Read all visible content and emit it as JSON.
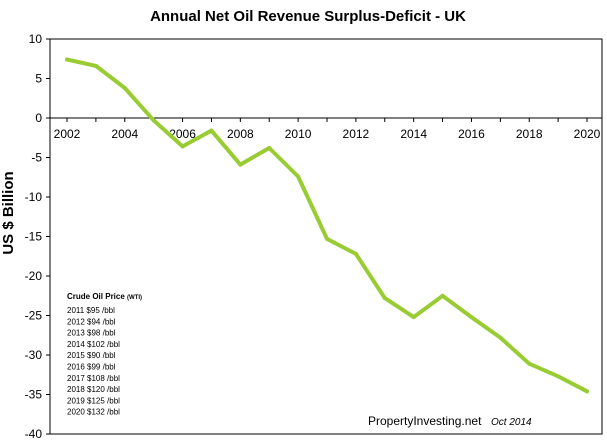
{
  "chart_data": {
    "type": "line",
    "title": "Annual Net Oil Revenue Surplus-Deficit  - UK",
    "ylabel": "US $ Billion",
    "xlabel": "",
    "xlim": [
      2002,
      2020
    ],
    "ylim": [
      -40,
      10
    ],
    "x_ticks": [
      "2002",
      "2004",
      "2006",
      "2008",
      "2010",
      "2012",
      "2014",
      "2016",
      "2018",
      "2020"
    ],
    "y_ticks": [
      "10",
      "5",
      "0",
      "-5",
      "-10",
      "-15",
      "-20",
      "-25",
      "-30",
      "-35",
      "-40"
    ],
    "grid": false,
    "line_color": "#99cc33",
    "series": [
      {
        "x": [
          2002,
          2003,
          2004,
          2005,
          2006,
          2007,
          2008,
          2009,
          2010,
          2011,
          2012,
          2013,
          2014,
          2015,
          2016,
          2017,
          2018,
          2019,
          2020
        ],
        "values": [
          7.4,
          6.6,
          3.8,
          -0.3,
          -3.6,
          -1.6,
          -5.9,
          -3.8,
          -7.4,
          -15.3,
          -17.2,
          -22.8,
          -25.2,
          -22.5,
          -25.2,
          -27.8,
          -31.1,
          -32.7,
          -34.6
        ]
      }
    ]
  },
  "annotation": {
    "heading": "Crude Oil Price",
    "heading_unit": "(WTI)",
    "lines": [
      "2011 $95 /bbl",
      "2012 $94 /bbl",
      "2013 $98 /bbl",
      "2014 $102 /bbl",
      "2015 $90 /bbl",
      "2016 $99 /bbl",
      "2017 $108 /bbl",
      "2018 $120 /bbl",
      "2019 $125 /bbl",
      "2020 $132 /bbl"
    ]
  },
  "credit": {
    "site": "PropertyInvesting.net",
    "date": "Oct 2014"
  }
}
